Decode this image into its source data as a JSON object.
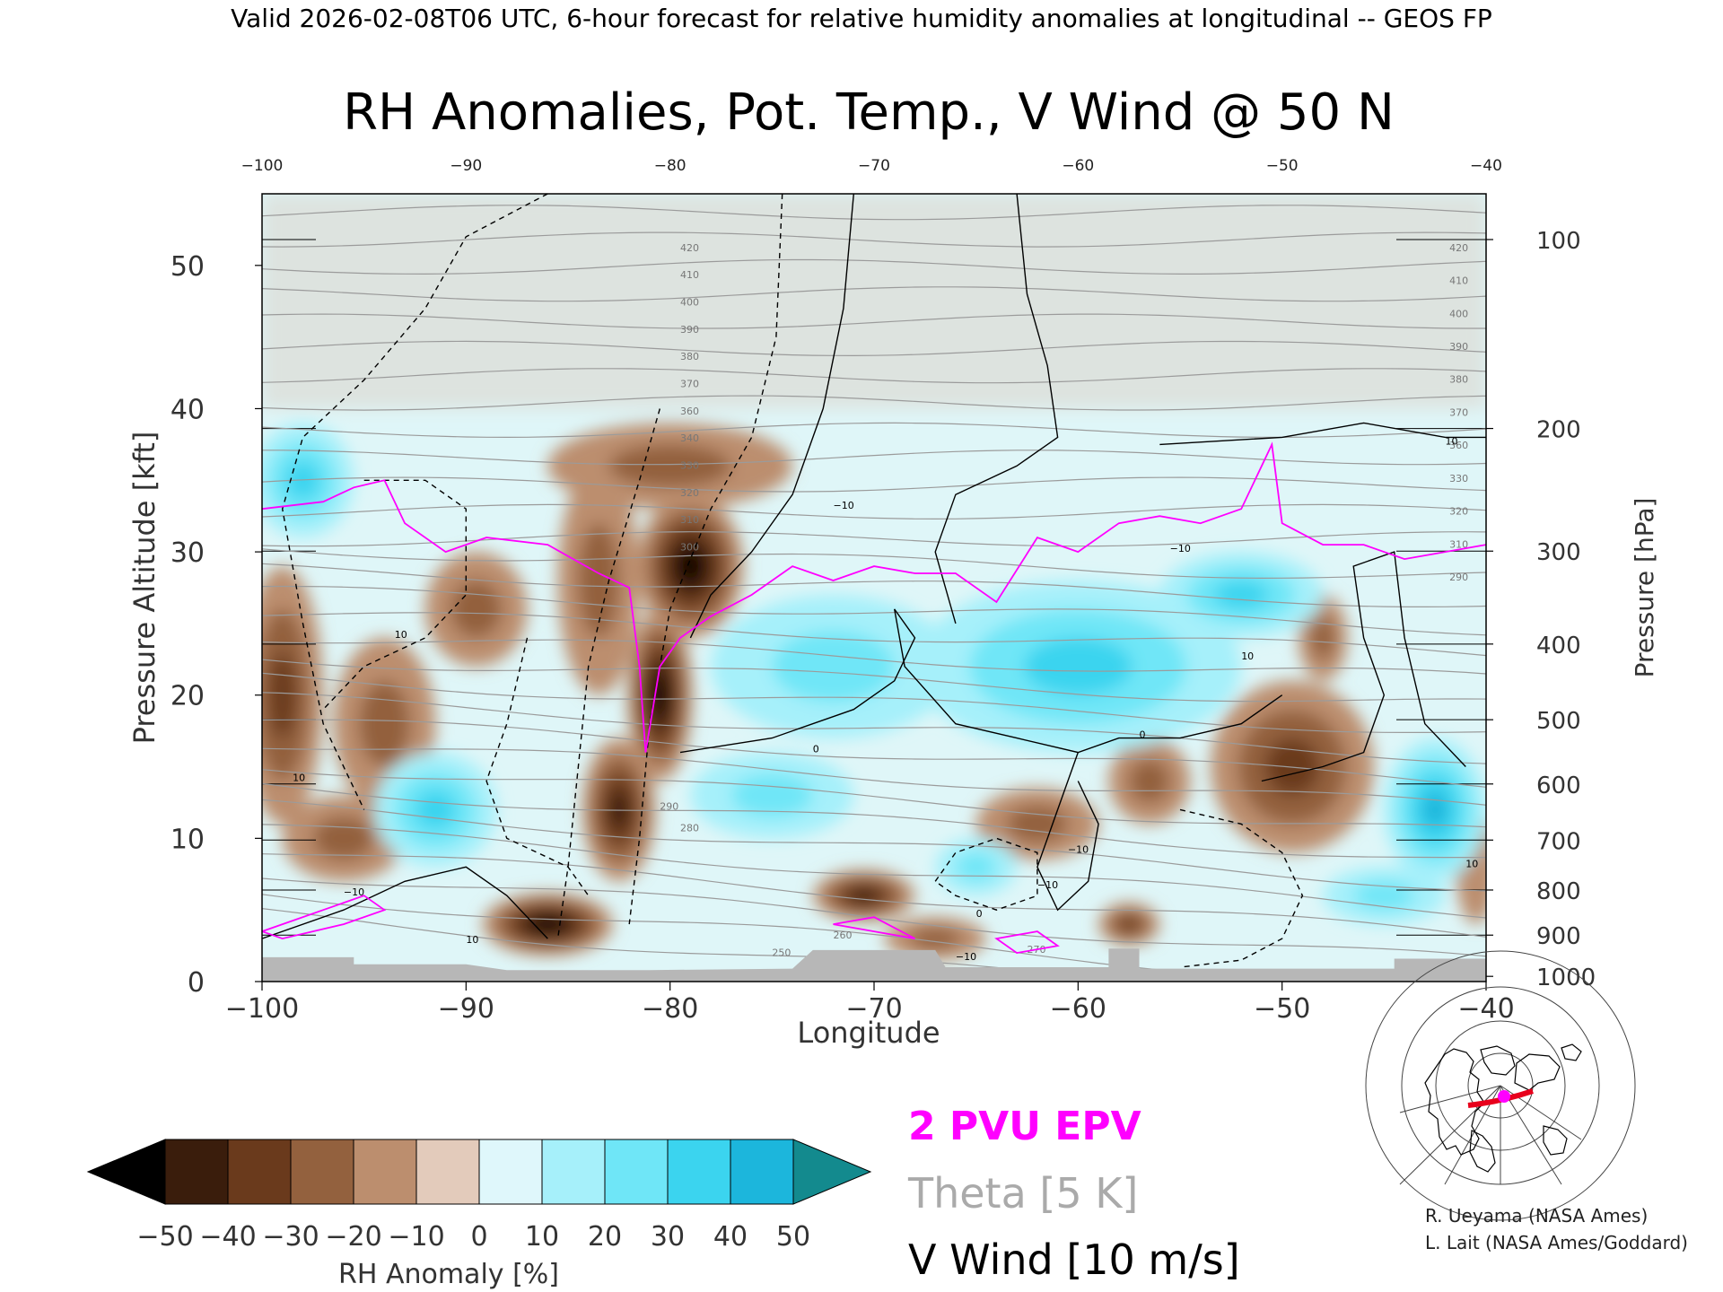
{
  "header": {
    "valid_line": "Valid 2026-02-08T06 UTC, 6-hour forecast for relative humidity anomalies at longitudinal -- GEOS FP"
  },
  "chart_data": {
    "type": "heatmap",
    "title": "RH Anomalies, Pot. Temp., V Wind @ 50 N",
    "xlabel": "Longitude",
    "ylabel_left": "Pressure Altitude [kft]",
    "ylabel_right": "Pressure [hPa]",
    "xlim": [
      -100,
      -40
    ],
    "ylim": [
      0,
      55
    ],
    "x_ticks": [
      -100,
      -90,
      -80,
      -70,
      -60,
      -50,
      -40
    ],
    "x_tick_labels": [
      "−100",
      "−90",
      "−80",
      "−70",
      "−60",
      "−50",
      "−40"
    ],
    "x_top_tick_labels": [
      "−100",
      "−90",
      "−80",
      "−70",
      "−60",
      "−50",
      "−40"
    ],
    "y_ticks": [
      0,
      10,
      20,
      30,
      40,
      50
    ],
    "y_tick_labels": [
      "0",
      "10",
      "20",
      "30",
      "40",
      "50"
    ],
    "pressure_ticks": [
      {
        "hpa": 100,
        "label": "100"
      },
      {
        "hpa": 200,
        "label": "200"
      },
      {
        "hpa": 300,
        "label": "300"
      },
      {
        "hpa": 400,
        "label": "400"
      },
      {
        "hpa": 500,
        "label": "500"
      },
      {
        "hpa": 600,
        "label": "600"
      },
      {
        "hpa": 700,
        "label": "700"
      },
      {
        "hpa": 800,
        "label": "800"
      },
      {
        "hpa": 900,
        "label": "900"
      },
      {
        "hpa": 1000,
        "label": "1000"
      }
    ],
    "rh_anomaly_features": [
      {
        "kind": "dry",
        "lon": -79,
        "alt": 29,
        "amp": -55,
        "rx": 2.6,
        "ry": 5
      },
      {
        "kind": "dry",
        "lon": -80.5,
        "alt": 20,
        "amp": -50,
        "rx": 1.6,
        "ry": 6
      },
      {
        "kind": "dry",
        "lon": -82.5,
        "alt": 12,
        "amp": -40,
        "rx": 1.8,
        "ry": 5
      },
      {
        "kind": "dry",
        "lon": -86,
        "alt": 4,
        "amp": -55,
        "rx": 3.2,
        "ry": 2.2
      },
      {
        "kind": "dry",
        "lon": -83.5,
        "alt": 28,
        "amp": -28,
        "rx": 2,
        "ry": 8
      },
      {
        "kind": "dry",
        "lon": -80,
        "alt": 36,
        "amp": -25,
        "rx": 6,
        "ry": 3
      },
      {
        "kind": "dry",
        "lon": -99,
        "alt": 20,
        "amp": -35,
        "rx": 2,
        "ry": 9
      },
      {
        "kind": "dry",
        "lon": -94,
        "alt": 18,
        "amp": -28,
        "rx": 2.5,
        "ry": 6
      },
      {
        "kind": "dry",
        "lon": -96,
        "alt": 10,
        "amp": -22,
        "rx": 3,
        "ry": 3
      },
      {
        "kind": "dry",
        "lon": -89.5,
        "alt": 26,
        "amp": -22,
        "rx": 2.5,
        "ry": 4
      },
      {
        "kind": "dry",
        "lon": -70.5,
        "alt": 6,
        "amp": -40,
        "rx": 2.5,
        "ry": 1.8
      },
      {
        "kind": "dry",
        "lon": -67,
        "alt": 3,
        "amp": -25,
        "rx": 2.5,
        "ry": 1.5
      },
      {
        "kind": "dry",
        "lon": -62,
        "alt": 11,
        "amp": -20,
        "rx": 3,
        "ry": 2.5
      },
      {
        "kind": "dry",
        "lon": -56.5,
        "alt": 14,
        "amp": -20,
        "rx": 2,
        "ry": 3
      },
      {
        "kind": "dry",
        "lon": -48.5,
        "alt": 16,
        "amp": -55,
        "rx": 2,
        "ry": 3.2
      },
      {
        "kind": "dry",
        "lon": -49.5,
        "alt": 15,
        "amp": -30,
        "rx": 4,
        "ry": 6
      },
      {
        "kind": "dry",
        "lon": -48,
        "alt": 24,
        "amp": -20,
        "rx": 1.2,
        "ry": 3
      },
      {
        "kind": "dry",
        "lon": -57.5,
        "alt": 4,
        "amp": -30,
        "rx": 1.5,
        "ry": 1.5
      },
      {
        "kind": "dry",
        "lon": -40.5,
        "alt": 8,
        "amp": -15,
        "rx": 1,
        "ry": 4
      },
      {
        "kind": "moist",
        "lon": -91.5,
        "alt": 12,
        "amp": 35,
        "rx": 3,
        "ry": 4
      },
      {
        "kind": "moist",
        "lon": -98,
        "alt": 35,
        "amp": 35,
        "rx": 2.5,
        "ry": 4
      },
      {
        "kind": "moist",
        "lon": -72,
        "alt": 22,
        "amp": 25,
        "rx": 6,
        "ry": 5
      },
      {
        "kind": "moist",
        "lon": -60,
        "alt": 22,
        "amp": 30,
        "rx": 8,
        "ry": 6
      },
      {
        "kind": "moist",
        "lon": -52,
        "alt": 27,
        "amp": 30,
        "rx": 4,
        "ry": 3
      },
      {
        "kind": "moist",
        "lon": -42.5,
        "alt": 12,
        "amp": 40,
        "rx": 2.5,
        "ry": 5
      },
      {
        "kind": "moist",
        "lon": -65,
        "alt": 8,
        "amp": 28,
        "rx": 2,
        "ry": 2
      },
      {
        "kind": "moist",
        "lon": -75,
        "alt": 13,
        "amp": 22,
        "rx": 4,
        "ry": 3
      },
      {
        "kind": "moist",
        "lon": -45,
        "alt": 6,
        "amp": 25,
        "rx": 3,
        "ry": 2
      },
      {
        "kind": "neutral_upper",
        "alt_min": 40,
        "alt_max": 55,
        "amp": 2
      }
    ],
    "theta_contours": {
      "interval_k": 5,
      "labels_upper": [
        "420",
        "410",
        "400",
        "390",
        "380",
        "370",
        "360",
        "340",
        "330",
        "320",
        "310",
        "300"
      ],
      "labels_right": [
        "420",
        "410",
        "400",
        "390",
        "380",
        "370",
        "360",
        "330",
        "320",
        "310",
        "290"
      ],
      "labels_lower": [
        "290",
        "280",
        "270",
        "260",
        "250"
      ]
    },
    "v_wind_contours": {
      "interval_ms": 10,
      "labels": [
        "10",
        "0",
        "−10",
        "−10",
        "10",
        "0",
        "−10",
        "10",
        "−10",
        "0",
        "10",
        "−10",
        "10",
        "−10",
        "10"
      ]
    },
    "epv_2pvu": {
      "line_lon": [
        -100,
        -97,
        -95.5,
        -94,
        -93,
        -91,
        -89,
        -86,
        -83.5,
        -82,
        -81.5,
        -81.2,
        -80.5,
        -79.5,
        -78,
        -76,
        -74,
        -72,
        -70,
        -68,
        -66,
        -64,
        -62,
        -60,
        -58,
        -56,
        -54,
        -52,
        -50.5,
        -50,
        -48,
        -46,
        -44,
        -42,
        -40
      ],
      "line_alt": [
        33,
        33.5,
        34.5,
        35,
        32,
        30,
        31,
        30.5,
        28.5,
        27.5,
        22,
        16,
        22,
        24,
        25.5,
        27,
        29,
        28,
        29,
        28.5,
        28.5,
        26.5,
        31,
        30,
        32,
        32.5,
        32,
        33,
        37.5,
        32,
        30.5,
        30.5,
        29.5,
        30,
        30.5
      ]
    }
  },
  "legends": {
    "epv": "2 PVU EPV",
    "theta": "Theta [5 K]",
    "vwind": "V Wind [10 m/s]"
  },
  "colorbar": {
    "label": "RH Anomaly [%]",
    "tick_labels": [
      "−50",
      "−40",
      "−30",
      "−20",
      "−10",
      "0",
      "10",
      "20",
      "30",
      "40",
      "50"
    ],
    "colors": [
      "#000000",
      "#3a1d0c",
      "#6a3a1c",
      "#93613e",
      "#bc8e6e",
      "#e3cbbb",
      "#dff7fb",
      "#a6f0fa",
      "#6fe6f7",
      "#3bd4ef",
      "#1cb6dc",
      "#0f87aa",
      "#138a8e"
    ]
  },
  "credits": {
    "line1": "R. Ueyama (NASA Ames)",
    "line2": "L. Lait (NASA Ames/Goddard)"
  },
  "colors": {
    "epv": "#ff00ff",
    "theta": "#9b9b9b",
    "ground": "#b7b7b7",
    "frame": "#000000"
  }
}
